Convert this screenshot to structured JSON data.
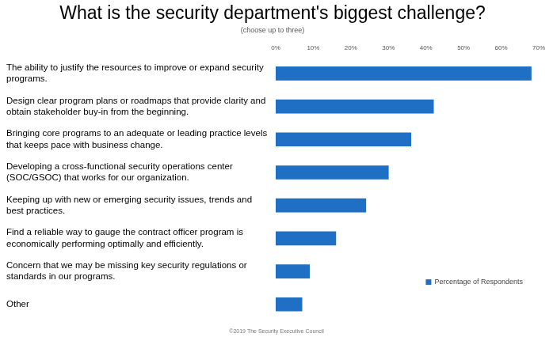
{
  "chart_data": {
    "type": "bar",
    "orientation": "horizontal",
    "title": "What is the security department's biggest challenge?",
    "subtitle": "(choose up to three)",
    "footer": "©2019 The Security Executive Council",
    "categories": [
      "The ability to justify the resources to improve or expand security programs.",
      "Design clear program plans or roadmaps that provide clarity and obtain stakeholder buy-in from the beginning.",
      "Bringing core programs to an adequate or leading practice levels that keeps pace with business change.",
      "Developing a cross-functional security operations center (SOC/GSOC) that works for our organization.",
      "Keeping up with new or emerging security issues, trends and best practices.",
      "Find a reliable way to gauge the contract officer program is economically performing optimally and efficiently.",
      "Concern that we may be missing key security regulations or standards in our programs.",
      "Other"
    ],
    "series": [
      {
        "name": "Percentage of Respondents",
        "color": "#1f6fc5",
        "values": [
          68,
          42,
          36,
          30,
          24,
          16,
          9,
          7
        ]
      }
    ],
    "xlim": [
      0,
      70
    ],
    "xticks": [
      {
        "value": 0,
        "label": "0%"
      },
      {
        "value": 10,
        "label": "10%"
      },
      {
        "value": 20,
        "label": "20%"
      },
      {
        "value": 30,
        "label": "30%"
      },
      {
        "value": 40,
        "label": "40%"
      },
      {
        "value": 50,
        "label": "50%"
      },
      {
        "value": 60,
        "label": "60%"
      },
      {
        "value": 70,
        "label": "70%"
      }
    ],
    "grid": false,
    "legend": "lower right"
  }
}
